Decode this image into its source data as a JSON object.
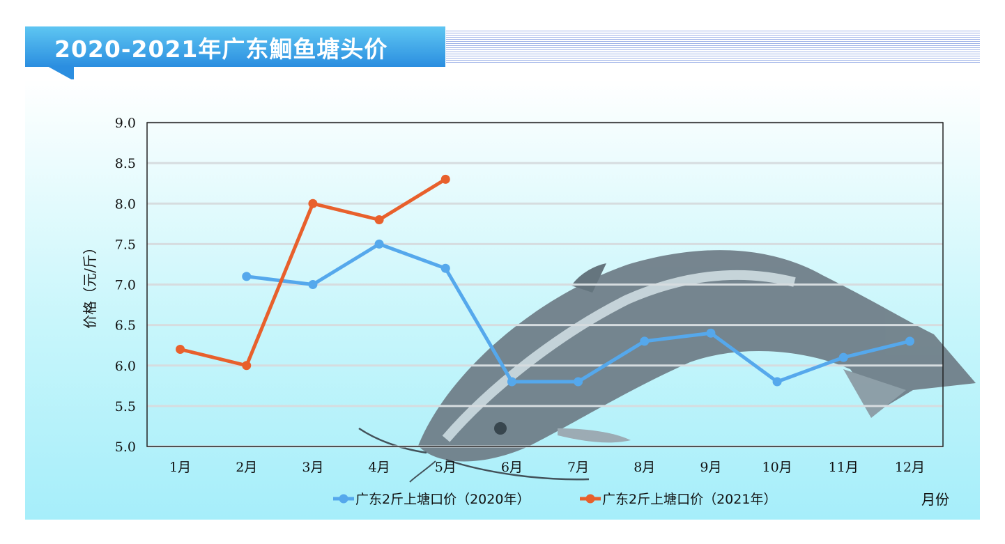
{
  "title": "2020-2021年广东鮰鱼塘头价",
  "chart_data": {
    "type": "line",
    "title": "2020-2021年广东鮰鱼塘头价",
    "xlabel": "月份",
    "ylabel": "价格（元/斤）",
    "ylim": [
      5.0,
      9.0
    ],
    "yticks": [
      "5.0",
      "5.5",
      "6.0",
      "6.5",
      "7.0",
      "7.5",
      "8.0",
      "8.5",
      "9.0"
    ],
    "categories": [
      "1月",
      "2月",
      "3月",
      "4月",
      "5月",
      "6月",
      "7月",
      "8月",
      "9月",
      "10月",
      "11月",
      "12月"
    ],
    "series": [
      {
        "name": "广东2斤上塘口价（2020年）",
        "color": "#55a8ec",
        "values": [
          null,
          7.1,
          7.0,
          7.5,
          7.2,
          5.8,
          5.8,
          6.3,
          6.4,
          5.8,
          6.1,
          6.3
        ]
      },
      {
        "name": "广东2斤上塘口价（2021年）",
        "color": "#e8602c",
        "values": [
          6.2,
          6.0,
          8.0,
          7.8,
          8.3,
          null,
          null,
          null,
          null,
          null,
          null,
          null
        ]
      }
    ],
    "grid": true,
    "legend_position": "bottom"
  }
}
